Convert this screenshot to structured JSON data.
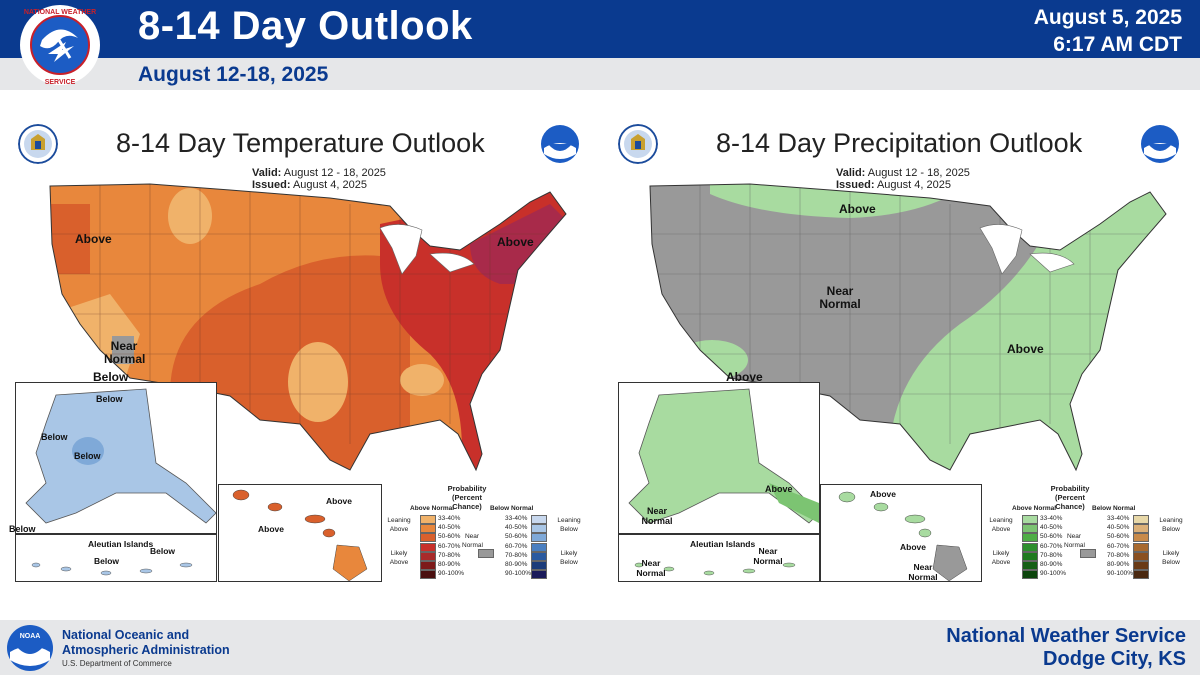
{
  "header": {
    "title": "8-14 Day Outlook",
    "subtitle": "August 12-18, 2025",
    "date": "August 5, 2025",
    "time": "6:17 AM CDT",
    "nws_logo_text": "NATIONAL WEATHER SERVICE"
  },
  "colors": {
    "brand_blue": "#0a3a8f",
    "above_33_40": "#f0b26a",
    "above_40_50": "#e8873c",
    "above_50_60": "#d9602c",
    "above_60_70": "#c8302a",
    "above_70_80": "#a82a4a",
    "below_33_40": "#a9c6e6",
    "precip_above_33_40": "#a8dba0",
    "near_normal": "#999999"
  },
  "temperature": {
    "title": "8-14 Day Temperature Outlook",
    "valid_label": "Valid:",
    "valid_value": "August 12 - 18, 2025",
    "issued_label": "Issued:",
    "issued_value": "August 4, 2025",
    "labels": {
      "above_nw": "Above",
      "above_ne": "Above",
      "near_normal": "Near Normal",
      "below_sw": "Below",
      "ak_below1": "Below",
      "ak_below2": "Below",
      "ak_below3": "Below",
      "ak_below4": "Below",
      "aleutian": "Aleutian Islands",
      "aleutian_below": "Below",
      "aleutian_below2": "Below",
      "hi_above1": "Above",
      "hi_above2": "Above"
    },
    "legend": {
      "title": "Probability",
      "subtitle": "(Percent Chance)",
      "above_head": "Above Normal",
      "below_head": "Below Normal",
      "leaning_above": "Leaning Above",
      "likely_above": "Likely Above",
      "leaning_below": "Leaning Below",
      "likely_below": "Likely Below",
      "near_normal": "Near Normal",
      "ranges": [
        "33-40%",
        "40-50%",
        "50-60%",
        "60-70%",
        "70-80%",
        "80-90%",
        "90-100%"
      ],
      "above_colors": [
        "#f0b26a",
        "#e8873c",
        "#d9602c",
        "#c8302a",
        "#a82a2a",
        "#7d1a1a",
        "#4a0f0f"
      ],
      "below_colors": [
        "#c8d8ee",
        "#a9c6e6",
        "#7fa9d8",
        "#4a7fc0",
        "#2a5aa0",
        "#1c3c7a",
        "#1a1a5a"
      ]
    }
  },
  "precipitation": {
    "title": "8-14 Day Precipitation Outlook",
    "valid_label": "Valid:",
    "valid_value": "August 12 - 18, 2025",
    "issued_label": "Issued:",
    "issued_value": "August 4, 2025",
    "labels": {
      "above_n": "Above",
      "near_normal": "Near Normal",
      "above_e": "Above",
      "above_sw": "Above",
      "ak_near": "Near Normal",
      "ak_above": "Above",
      "aleutian": "Aleutian Islands",
      "aleutian_near1": "Near Normal",
      "aleutian_near2": "Near Normal",
      "hi_above1": "Above",
      "hi_above2": "Above",
      "hi_near": "Near Normal"
    },
    "legend": {
      "title": "Probability",
      "subtitle": "(Percent Chance)",
      "above_head": "Above Normal",
      "below_head": "Below Normal",
      "leaning_above": "Leaning Above",
      "likely_above": "Likely Above",
      "leaning_below": "Leaning Below",
      "likely_below": "Likely Below",
      "near_normal": "Near Normal",
      "ranges": [
        "33-40%",
        "40-50%",
        "50-60%",
        "60-70%",
        "70-80%",
        "80-90%",
        "90-100%"
      ],
      "above_colors": [
        "#a8dba0",
        "#7cc472",
        "#4fae46",
        "#2e8f2e",
        "#1f7a1f",
        "#156015",
        "#0d450d"
      ],
      "below_colors": [
        "#e8d8a8",
        "#dcb078",
        "#c88a4a",
        "#a86a30",
        "#8a5020",
        "#6a3a15",
        "#4a2810"
      ]
    }
  },
  "footer": {
    "noaa_line1": "National Oceanic and",
    "noaa_line2": "Atmospheric Administration",
    "noaa_line3": "U.S. Department of Commerce",
    "office_line1": "National Weather Service",
    "office_line2": "Dodge City, KS"
  }
}
